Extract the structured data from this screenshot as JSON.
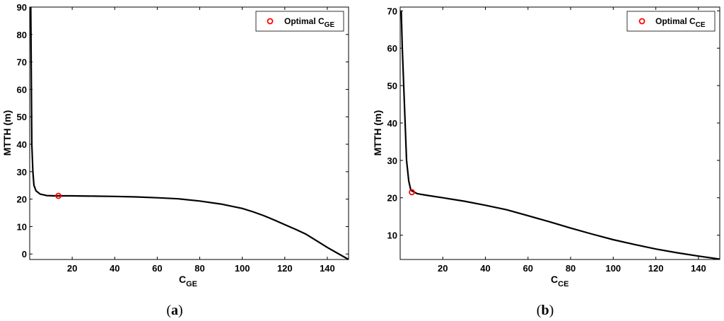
{
  "chart_data": [
    {
      "type": "line",
      "panel_label": "a",
      "xlabel": "C",
      "xlabel_sub": "GE",
      "ylabel": "MTTH (m)",
      "xlim": [
        0,
        150
      ],
      "ylim": [
        -2,
        90
      ],
      "xticks": [
        20,
        40,
        60,
        80,
        100,
        120,
        140
      ],
      "yticks": [
        0,
        10,
        20,
        30,
        40,
        50,
        60,
        70,
        80,
        90
      ],
      "grid": false,
      "legend_position": "top-right",
      "legend_label": "Optimal C",
      "legend_sub": "GE",
      "series": [
        {
          "color": "#000000",
          "x": [
            0.5,
            0.8,
            1,
            1.5,
            2,
            3,
            5,
            8,
            12,
            20,
            30,
            40,
            50,
            60,
            70,
            80,
            90,
            100,
            105,
            110,
            115,
            120,
            125,
            130,
            135,
            140,
            145,
            150
          ],
          "y": [
            90,
            60,
            40,
            30,
            25,
            23,
            21.8,
            21.3,
            21.2,
            21.2,
            21.1,
            21.0,
            20.8,
            20.5,
            20.1,
            19.3,
            18.2,
            16.6,
            15.4,
            14.0,
            12.4,
            10.7,
            9.0,
            7.2,
            4.8,
            2.4,
            0.2,
            -2
          ]
        }
      ],
      "optimal_point": {
        "x": 13.5,
        "y": 21.2,
        "color": "#ff0000"
      }
    },
    {
      "type": "line",
      "panel_label": "b",
      "xlabel": "C",
      "xlabel_sub": "CE",
      "ylabel": "MTTH (m)",
      "xlim": [
        0,
        150
      ],
      "ylim": [
        3.5,
        71
      ],
      "xticks": [
        20,
        40,
        60,
        80,
        100,
        120,
        140
      ],
      "yticks": [
        10,
        20,
        30,
        40,
        50,
        60,
        70
      ],
      "grid": false,
      "legend_position": "top-right",
      "legend_label": "Optimal C",
      "legend_sub": "CE",
      "series": [
        {
          "color": "#000000",
          "x": [
            0.5,
            1,
            2,
            3,
            4,
            5,
            8,
            12,
            20,
            30,
            40,
            50,
            60,
            70,
            80,
            90,
            100,
            110,
            120,
            130,
            140,
            150
          ],
          "y": [
            70,
            60,
            45,
            30,
            24.5,
            22,
            21.1,
            20.7,
            20.0,
            19.1,
            18.0,
            16.8,
            15.2,
            13.6,
            11.9,
            10.3,
            8.8,
            7.5,
            6.3,
            5.3,
            4.4,
            3.6
          ]
        }
      ],
      "optimal_point": {
        "x": 5.5,
        "y": 21.5,
        "color": "#ff0000"
      }
    }
  ]
}
